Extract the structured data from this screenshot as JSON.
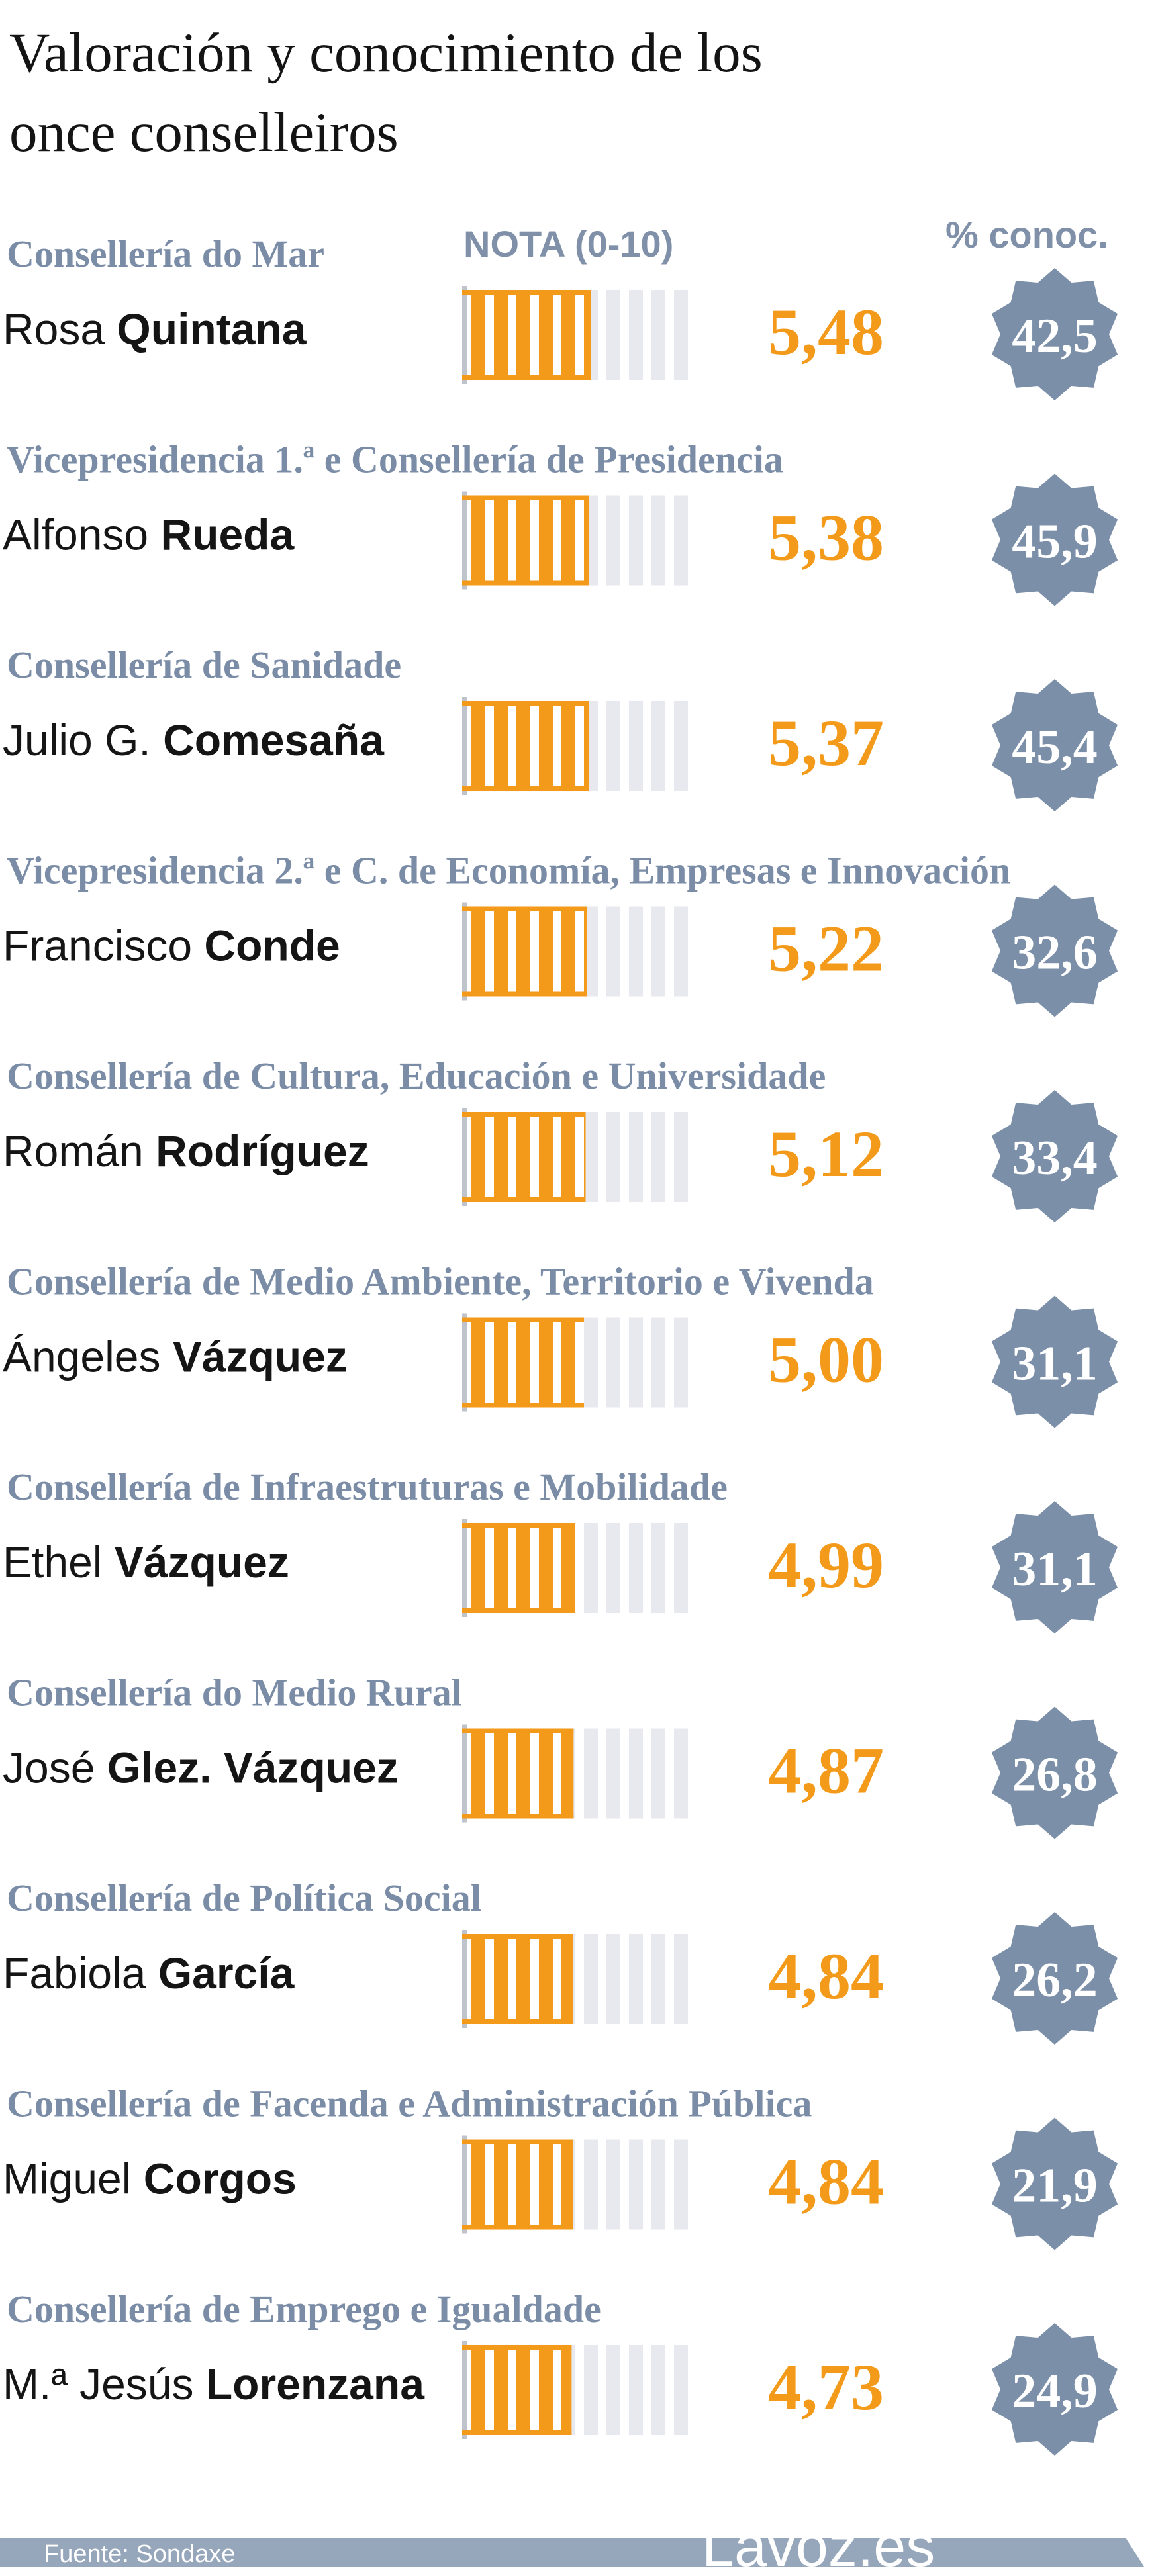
{
  "title_lines": [
    "Valoración y conocimiento de los",
    "once conselleiros"
  ],
  "header": {
    "nota": "NOTA (0-10)",
    "conoc": "% conoc."
  },
  "chart_data": {
    "type": "bar",
    "title": "Valoración y conocimiento de los once conselleiros",
    "scale": [
      0,
      10
    ],
    "series": [
      {
        "name": "NOTA (0-10)",
        "values": [
          5.48,
          5.38,
          5.37,
          5.22,
          5.12,
          5.0,
          4.99,
          4.87,
          4.84,
          4.84,
          4.73
        ]
      },
      {
        "name": "% conoc.",
        "values": [
          42.5,
          45.9,
          45.4,
          32.6,
          33.4,
          31.1,
          31.1,
          26.8,
          26.2,
          21.9,
          24.9
        ]
      }
    ],
    "rows": [
      {
        "dept": "Consellería do Mar",
        "first": "Rosa",
        "last": "Quintana",
        "score": 5.48,
        "score_label": "5,48",
        "conoc_label": "42,5"
      },
      {
        "dept": "Vicepresidencia 1.ª e Consellería de Presidencia",
        "first": "Alfonso",
        "last": "Rueda",
        "score": 5.38,
        "score_label": "5,38",
        "conoc_label": "45,9"
      },
      {
        "dept": "Consellería de Sanidade",
        "first": "Julio G.",
        "last": "Comesaña",
        "score": 5.37,
        "score_label": "5,37",
        "conoc_label": "45,4"
      },
      {
        "dept": "Vicepresidencia 2.ª e C. de Economía, Empresas e Innovación",
        "first": "Francisco",
        "last": "Conde",
        "score": 5.22,
        "score_label": "5,22",
        "conoc_label": "32,6"
      },
      {
        "dept": "Consellería de Cultura, Educación e Universidade",
        "first": "Román",
        "last": "Rodríguez",
        "score": 5.12,
        "score_label": "5,12",
        "conoc_label": "33,4"
      },
      {
        "dept": "Consellería de Medio Ambiente, Territorio e Vivenda",
        "first": "Ángeles",
        "last": "Vázquez",
        "score": 5.0,
        "score_label": "5,00",
        "conoc_label": "31,1"
      },
      {
        "dept": "Consellería de Infraestruturas e Mobilidade",
        "first": "Ethel",
        "last": "Vázquez",
        "score": 4.99,
        "score_label": "4,99",
        "conoc_label": "31,1"
      },
      {
        "dept": "Consellería do Medio Rural",
        "first": "José",
        "last": "Glez. Vázquez",
        "score": 4.87,
        "score_label": "4,87",
        "conoc_label": "26,8"
      },
      {
        "dept": "Consellería de Política Social",
        "first": "Fabiola",
        "last": "García",
        "score": 4.84,
        "score_label": "4,84",
        "conoc_label": "26,2"
      },
      {
        "dept": "Consellería de Facenda e Administración Pública",
        "first": "Miguel",
        "last": "Corgos",
        "score": 4.84,
        "score_label": "4,84",
        "conoc_label": "21,9"
      },
      {
        "dept": "Consellería de Emprego e Igualdade",
        "first": "M.ª Jesús",
        "last": "Lorenzana",
        "score": 4.73,
        "score_label": "4,73",
        "conoc_label": "24,9"
      }
    ]
  },
  "colors": {
    "bar_fill": "#f39a1a",
    "bar_empty": "#e8e9ef",
    "badge": "#7b8fa8",
    "dept_text": "#7a8ca6",
    "footer": "#96a6bb"
  },
  "footer": {
    "source": "Fuente: Sondaxe",
    "logo": "Lavoz.es"
  }
}
